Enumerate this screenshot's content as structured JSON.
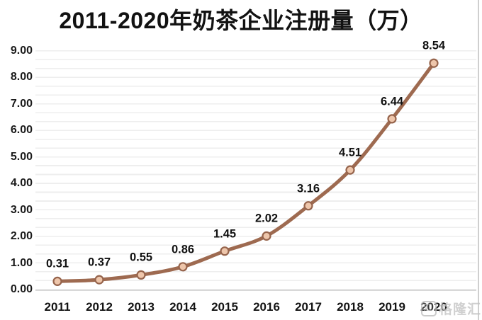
{
  "header": {
    "title": "2011-2020年奶茶企业注册量（万）"
  },
  "watermark": {
    "text": "格隆汇",
    "logo": "gelonghui-logo"
  },
  "colors": {
    "background": "#ffffff",
    "title_text": "#121212",
    "axis_text": "#1a1a1a",
    "data_label_text": "#111111",
    "line": "#9e6a50",
    "marker_fill": "#eec6ab",
    "marker_stroke": "#96644c",
    "gridline": "#eeeeee",
    "axis_line": "#d8d8d8",
    "frame_border": "#cfcfcf",
    "watermark_gray": "#c4c4c4"
  },
  "chart_data": {
    "type": "line",
    "title": "2011-2020年奶茶企业注册量（万）",
    "x": [
      "2011",
      "2012",
      "2013",
      "2014",
      "2015",
      "2016",
      "2017",
      "2018",
      "2019",
      "2020"
    ],
    "values": [
      0.31,
      0.37,
      0.55,
      0.86,
      1.45,
      2.02,
      3.16,
      4.51,
      6.44,
      8.54
    ],
    "data_labels": [
      "0.31",
      "0.37",
      "0.55",
      "0.86",
      "1.45",
      "2.02",
      "3.16",
      "4.51",
      "6.44",
      "8.54"
    ],
    "y_ticks": [
      "0.00",
      "1.00",
      "2.00",
      "3.00",
      "4.00",
      "5.00",
      "6.00",
      "7.00",
      "8.00",
      "9.00"
    ],
    "ylim": [
      0,
      9
    ],
    "xlabel": "",
    "ylabel": "",
    "grid": true,
    "legend_position": "none",
    "marker": "circle",
    "line_smooth": true
  }
}
